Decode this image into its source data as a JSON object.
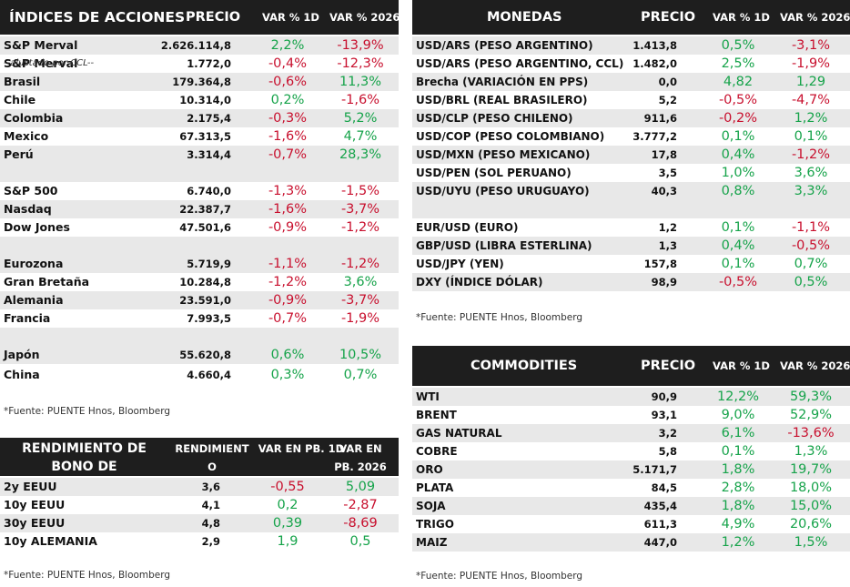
{
  "indices": {
    "headers": [
      "ÍNDICES DE ACCIONES",
      "PRECIO",
      "VAR % 1D",
      "VAR % 2026"
    ],
    "rows": [
      {
        "name": "S&P Merval",
        "note": "",
        "price": "2.626.114,8",
        "d1": "2,2%",
        "ytd": "-13,9%"
      },
      {
        "name": "S&P Merval",
        "note": "--ajustado por CCL--",
        "price": "1.772,0",
        "d1": "-0,4%",
        "ytd": "-12,3%"
      },
      {
        "name": "Brasil",
        "note": "",
        "price": "179.364,8",
        "d1": "-0,6%",
        "ytd": "11,3%"
      },
      {
        "name": "Chile",
        "note": "",
        "price": "10.314,0",
        "d1": "0,2%",
        "ytd": "-1,6%"
      },
      {
        "name": "Colombia",
        "note": "",
        "price": "2.175,4",
        "d1": "-0,3%",
        "ytd": "5,2%"
      },
      {
        "name": "Mexico",
        "note": "",
        "price": "67.313,5",
        "d1": "-1,6%",
        "ytd": "4,7%"
      },
      {
        "name": "Perú",
        "note": "",
        "price": "3.314,4",
        "d1": "-0,7%",
        "ytd": "28,3%"
      },
      {
        "name": "S&P 500",
        "note": "",
        "price": "6.740,0",
        "d1": "-1,3%",
        "ytd": "-1,5%"
      },
      {
        "name": "Nasdaq",
        "note": "",
        "price": "22.387,7",
        "d1": "-1,6%",
        "ytd": "-3,7%"
      },
      {
        "name": "Dow Jones",
        "note": "",
        "price": "47.501,6",
        "d1": "-0,9%",
        "ytd": "-1,2%"
      },
      {
        "name": "Eurozona",
        "note": "",
        "price": "5.719,9",
        "d1": "-1,1%",
        "ytd": "-1,2%"
      },
      {
        "name": "Gran Bretaña",
        "note": "",
        "price": "10.284,8",
        "d1": "-1,2%",
        "ytd": "3,6%"
      },
      {
        "name": "Alemania",
        "note": "",
        "price": "23.591,0",
        "d1": "-0,9%",
        "ytd": "-3,7%"
      },
      {
        "name": "Francia",
        "note": "",
        "price": "7.993,5",
        "d1": "-0,7%",
        "ytd": "-1,9%"
      },
      {
        "name": "Japón",
        "note": "",
        "price": "55.620,8",
        "d1": "0,6%",
        "ytd": "10,5%"
      },
      {
        "name": "China",
        "note": "",
        "price": "4.660,4",
        "d1": "0,3%",
        "ytd": "0,7%"
      }
    ],
    "source": "*Fuente: PUENTE Hnos, Bloomberg"
  },
  "bonds": {
    "headers": [
      "RENDIMIENTO DE BONO DE REFERENCIA",
      "RENDIMIENT O",
      "VAR EN PB. 1D",
      "VAR EN PB. 2026"
    ],
    "rows": [
      {
        "name": "2y EEUU",
        "yield": "3,6",
        "d1": "-0,55",
        "ytd": "5,09"
      },
      {
        "name": "10y EEUU",
        "yield": "4,1",
        "d1": "0,2",
        "ytd": "-2,87"
      },
      {
        "name": "30y EEUU",
        "yield": "4,8",
        "d1": "0,39",
        "ytd": "-8,69"
      },
      {
        "name": "10y ALEMANIA",
        "yield": "2,9",
        "d1": "1,9",
        "ytd": "0,5"
      }
    ],
    "source": "*Fuente: PUENTE Hnos, Bloomberg"
  },
  "currencies": {
    "headers": [
      "MONEDAS",
      "PRECIO",
      "VAR % 1D",
      "VAR % 2026"
    ],
    "rows": [
      {
        "name": "USD/ARS (PESO ARGENTINO)",
        "price": "1.413,8",
        "d1": "0,5%",
        "ytd": "-3,1%"
      },
      {
        "name": "USD/ARS (PESO ARGENTINO, CCL)",
        "price": "1.482,0",
        "d1": "2,5%",
        "ytd": "-1,9%"
      },
      {
        "name": "Brecha (VARIACIÓN EN PPS)",
        "price": "0,0",
        "d1": "4,82",
        "ytd": "1,29"
      },
      {
        "name": "USD/BRL (REAL BRASILERO)",
        "price": "5,2",
        "d1": "-0,5%",
        "ytd": "-4,7%"
      },
      {
        "name": "USD/CLP (PESO CHILENO)",
        "price": "911,6",
        "d1": "-0,2%",
        "ytd": "1,2%"
      },
      {
        "name": "USD/COP (PESO COLOMBIANO)",
        "price": "3.777,2",
        "d1": "0,1%",
        "ytd": "0,1%"
      },
      {
        "name": "USD/MXN (PESO MEXICANO)",
        "price": "17,8",
        "d1": "0,4%",
        "ytd": "-1,2%"
      },
      {
        "name": "USD/PEN (SOL PERUANO)",
        "price": "3,5",
        "d1": "1,0%",
        "ytd": "3,6%"
      },
      {
        "name": "USD/UYU (PESO URUGUAYO)",
        "price": "40,3",
        "d1": "0,8%",
        "ytd": "3,3%"
      },
      {
        "name": "EUR/USD (EURO)",
        "price": "1,2",
        "d1": "0,1%",
        "ytd": "-1,1%"
      },
      {
        "name": "GBP/USD (LIBRA ESTERLINA)",
        "price": "1,3",
        "d1": "0,4%",
        "ytd": "-0,5%"
      },
      {
        "name": "USD/JPY (YEN)",
        "price": "157,8",
        "d1": "0,1%",
        "ytd": "0,7%"
      },
      {
        "name": "DXY (ÍNDICE DÓLAR)",
        "price": "98,9",
        "d1": "-0,5%",
        "ytd": "0,5%"
      }
    ],
    "source": "*Fuente: PUENTE Hnos, Bloomberg"
  },
  "commodities": {
    "headers": [
      "COMMODITIES",
      "PRECIO",
      "VAR % 1D",
      "VAR % 2026"
    ],
    "rows": [
      {
        "name": "WTI",
        "price": "90,9",
        "d1": "12,2%",
        "ytd": "59,3%"
      },
      {
        "name": "BRENT",
        "price": "93,1",
        "d1": "9,0%",
        "ytd": "52,9%"
      },
      {
        "name": "GAS NATURAL",
        "price": "3,2",
        "d1": "6,1%",
        "ytd": "-13,6%"
      },
      {
        "name": "COBRE",
        "price": "5,8",
        "d1": "0,1%",
        "ytd": "1,3%"
      },
      {
        "name": "ORO",
        "price": "5.171,7",
        "d1": "1,8%",
        "ytd": "19,7%"
      },
      {
        "name": "PLATA",
        "price": "84,5",
        "d1": "2,8%",
        "ytd": "18,0%"
      },
      {
        "name": "SOJA",
        "price": "435,4",
        "d1": "1,8%",
        "ytd": "15,0%"
      },
      {
        "name": "TRIGO",
        "price": "611,3",
        "d1": "4,9%",
        "ytd": "20,6%"
      },
      {
        "name": "MAIZ",
        "price": "447,0",
        "d1": "1,2%",
        "ytd": "1,5%"
      }
    ],
    "source": "*Fuente: PUENTE Hnos, Bloomberg"
  },
  "colors": {
    "positive": "#16a34a",
    "negative": "#c8102e",
    "header_bg": "#1e1e1e",
    "row_shade": "#e8e8e8"
  }
}
